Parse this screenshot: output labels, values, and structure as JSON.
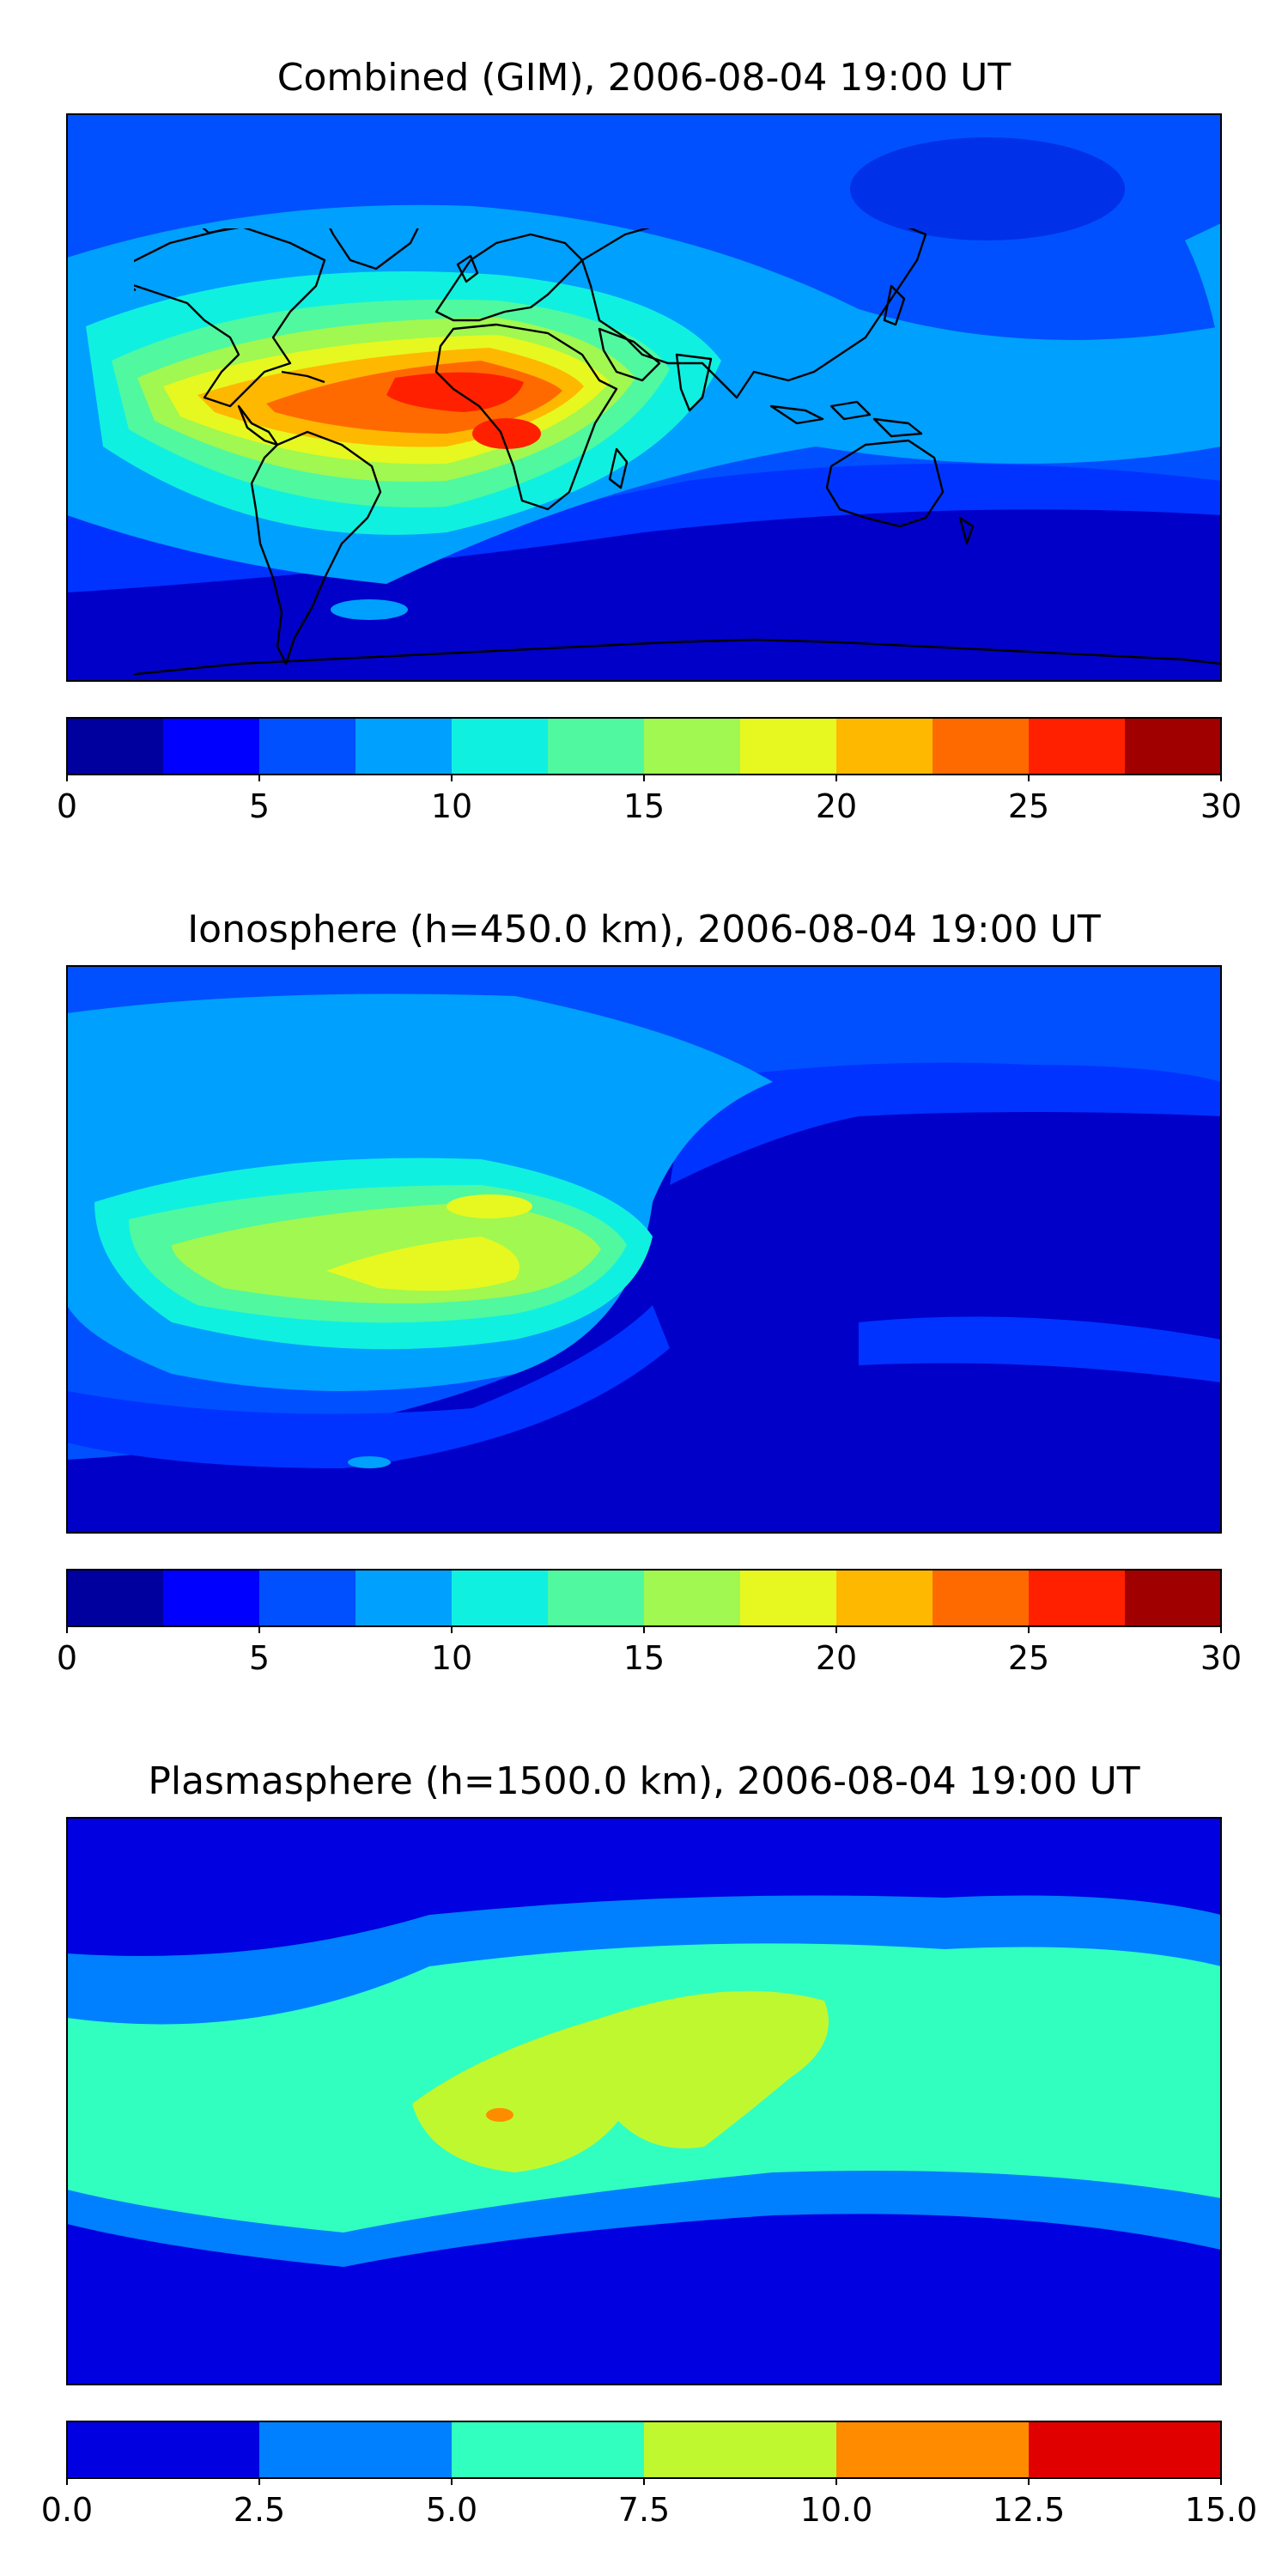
{
  "chart_data": [
    {
      "type": "heatmap",
      "title": "Combined (GIM), 2006-08-04 19:00 UT",
      "map": "world equirectangular, longitude -180 to 180, latitude -90 to 90",
      "colormap": "jet",
      "colorbar": {
        "min": 0,
        "max": 30,
        "levels": 12,
        "ticks": [
          "0",
          "5",
          "10",
          "15",
          "20",
          "25",
          "30"
        ]
      },
      "field": {
        "background": 4,
        "features": [
          {
            "name": "south-america-peak",
            "lon": -60,
            "lat": -8,
            "peak": 27,
            "extent_lon": 90,
            "extent_lat": 28
          },
          {
            "name": "atlantic-band",
            "lon": -25,
            "lat": 5,
            "peak": 14,
            "extent_lon": 60,
            "extent_lat": 22
          },
          {
            "name": "north-pacific-low",
            "lon": 110,
            "lat": 65,
            "peak": 3.5
          },
          {
            "name": "southern-ocean-low",
            "lon": 60,
            "lat": -65,
            "peak": 1.5
          }
        ]
      }
    },
    {
      "type": "heatmap",
      "title": "Ionosphere  (h=450.0 km), 2006-08-04 19:00 UT",
      "map": "world equirectangular, longitude -180 to 180, latitude -90 to 90",
      "colormap": "jet",
      "colorbar": {
        "min": 0,
        "max": 30,
        "levels": 12,
        "ticks": [
          "0",
          "5",
          "10",
          "15",
          "20",
          "25",
          "30"
        ]
      },
      "field": {
        "background": 3,
        "features": [
          {
            "name": "south-america-peak",
            "lon": -65,
            "lat": -12,
            "peak": 18,
            "extent_lon": 80,
            "extent_lat": 25
          },
          {
            "name": "north-america-band",
            "lon": -90,
            "lat": 45,
            "peak": 9
          },
          {
            "name": "asia-low",
            "lon": 90,
            "lat": 0,
            "peak": 1.5
          }
        ]
      }
    },
    {
      "type": "heatmap",
      "title": "Plasmasphere (h=1500.0 km), 2006-08-04 19:00 UT",
      "map": "world equirectangular, longitude -180 to 180, latitude -90 to 90",
      "colormap": "jet",
      "colorbar": {
        "min": 0.0,
        "max": 15.0,
        "levels": 6,
        "ticks": [
          "0.0",
          "2.5",
          "5.0",
          "7.5",
          "10.0",
          "12.5",
          "15.0"
        ]
      },
      "field": {
        "background": 1.5,
        "features": [
          {
            "name": "equatorial-band",
            "lat": 0,
            "peak": 6.5
          },
          {
            "name": "africa-south-america-high",
            "lon": -10,
            "lat": 0,
            "peak": 9
          },
          {
            "name": "brazil-max",
            "lon": -50,
            "lat": -3,
            "peak": 11
          }
        ]
      }
    }
  ]
}
